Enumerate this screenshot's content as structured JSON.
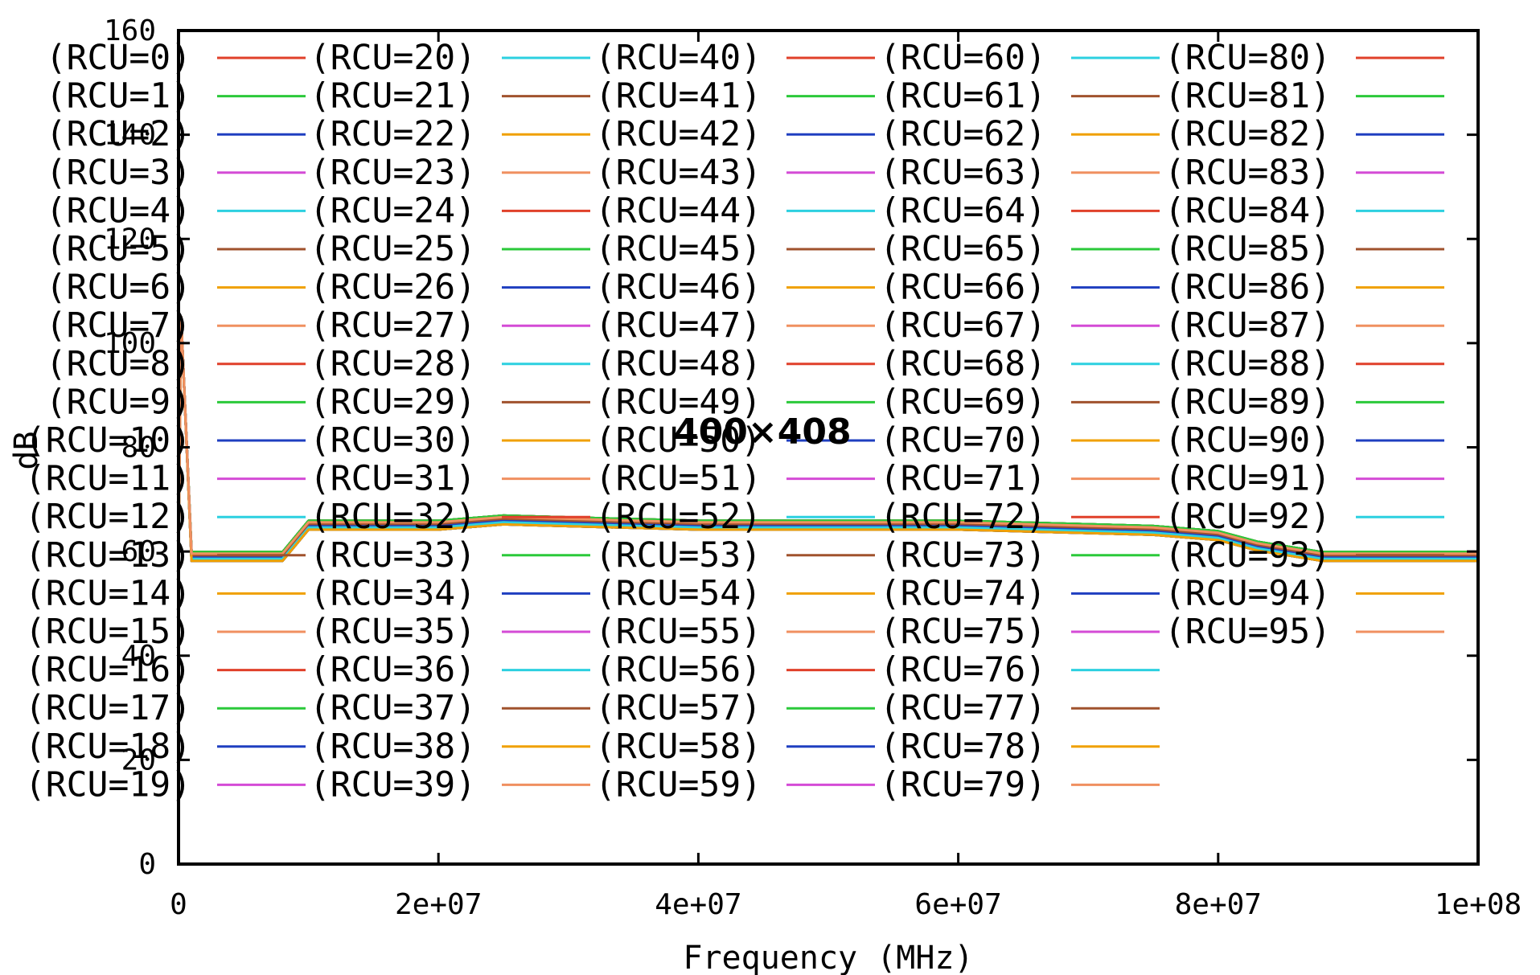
{
  "chart_data": {
    "type": "line",
    "xlabel": "Frequency (MHz)",
    "ylabel": "dB",
    "overlay_text": "400×408",
    "xlim": [
      0,
      100000000
    ],
    "ylim": [
      0,
      160
    ],
    "x_ticks": [
      {
        "value": 0,
        "label": "0"
      },
      {
        "value": 20000000,
        "label": "2e+07"
      },
      {
        "value": 40000000,
        "label": "4e+07"
      },
      {
        "value": 60000000,
        "label": "6e+07"
      },
      {
        "value": 80000000,
        "label": "8e+07"
      },
      {
        "value": 100000000,
        "label": "1e+08"
      }
    ],
    "y_ticks": [
      {
        "value": 0,
        "label": "0"
      },
      {
        "value": 20,
        "label": "20"
      },
      {
        "value": 40,
        "label": "40"
      },
      {
        "value": 60,
        "label": "60"
      },
      {
        "value": 80,
        "label": "80"
      },
      {
        "value": 100,
        "label": "100"
      },
      {
        "value": 120,
        "label": "120"
      },
      {
        "value": 140,
        "label": "140"
      },
      {
        "value": 160,
        "label": "160"
      }
    ],
    "grid": false,
    "legend_placement": "inside, 5 columns filling the plot",
    "legend_columns": 5,
    "legend_rows": 20,
    "palette": [
      "#e0402a",
      "#2bc93a",
      "#1f3fc0",
      "#d44bd6",
      "#2cd0e0",
      "#a0522d",
      "#f0a000",
      "#f09060"
    ],
    "series_names": [
      "(RCU=0)",
      "(RCU=1)",
      "(RCU=2)",
      "(RCU=3)",
      "(RCU=4)",
      "(RCU=5)",
      "(RCU=6)",
      "(RCU=7)",
      "(RCU=8)",
      "(RCU=9)",
      "(RCU=10)",
      "(RCU=11)",
      "(RCU=12)",
      "(RCU=13)",
      "(RCU=14)",
      "(RCU=15)",
      "(RCU=16)",
      "(RCU=17)",
      "(RCU=18)",
      "(RCU=19)",
      "(RCU=20)",
      "(RCU=21)",
      "(RCU=22)",
      "(RCU=23)",
      "(RCU=24)",
      "(RCU=25)",
      "(RCU=26)",
      "(RCU=27)",
      "(RCU=28)",
      "(RCU=29)",
      "(RCU=30)",
      "(RCU=31)",
      "(RCU=32)",
      "(RCU=33)",
      "(RCU=34)",
      "(RCU=35)",
      "(RCU=36)",
      "(RCU=37)",
      "(RCU=38)",
      "(RCU=39)",
      "(RCU=40)",
      "(RCU=41)",
      "(RCU=42)",
      "(RCU=43)",
      "(RCU=44)",
      "(RCU=45)",
      "(RCU=46)",
      "(RCU=47)",
      "(RCU=48)",
      "(RCU=49)",
      "(RCU=50)",
      "(RCU=51)",
      "(RCU=52)",
      "(RCU=53)",
      "(RCU=54)",
      "(RCU=55)",
      "(RCU=56)",
      "(RCU=57)",
      "(RCU=58)",
      "(RCU=59)",
      "(RCU=60)",
      "(RCU=61)",
      "(RCU=62)",
      "(RCU=63)",
      "(RCU=64)",
      "(RCU=65)",
      "(RCU=66)",
      "(RCU=67)",
      "(RCU=68)",
      "(RCU=69)",
      "(RCU=70)",
      "(RCU=71)",
      "(RCU=72)",
      "(RCU=73)",
      "(RCU=74)",
      "(RCU=75)",
      "(RCU=76)",
      "(RCU=77)",
      "(RCU=78)",
      "(RCU=79)",
      "(RCU=80)",
      "(RCU=81)",
      "(RCU=82)",
      "(RCU=83)",
      "(RCU=84)",
      "(RCU=85)",
      "(RCU=86)",
      "(RCU=87)",
      "(RCU=88)",
      "(RCU=89)",
      "(RCU=90)",
      "(RCU=91)",
      "(RCU=92)",
      "(RCU=93)",
      "(RCU=94)",
      "(RCU=95)"
    ],
    "curve_shape": {
      "x": [
        0,
        200000,
        1000000,
        8000000,
        10000000,
        20000000,
        25000000,
        40000000,
        60000000,
        75000000,
        80000000,
        83000000,
        88000000,
        100000000
      ],
      "y": [
        59,
        105,
        59,
        59,
        65,
        65,
        66,
        65,
        65,
        64,
        63,
        61,
        59,
        59
      ]
    },
    "series_offsets": [
      0.4,
      -0.3,
      0.7,
      -0.6,
      0.2,
      0.9,
      -0.1,
      0.5,
      -0.4,
      0.3,
      -0.8,
      0.6
    ]
  }
}
